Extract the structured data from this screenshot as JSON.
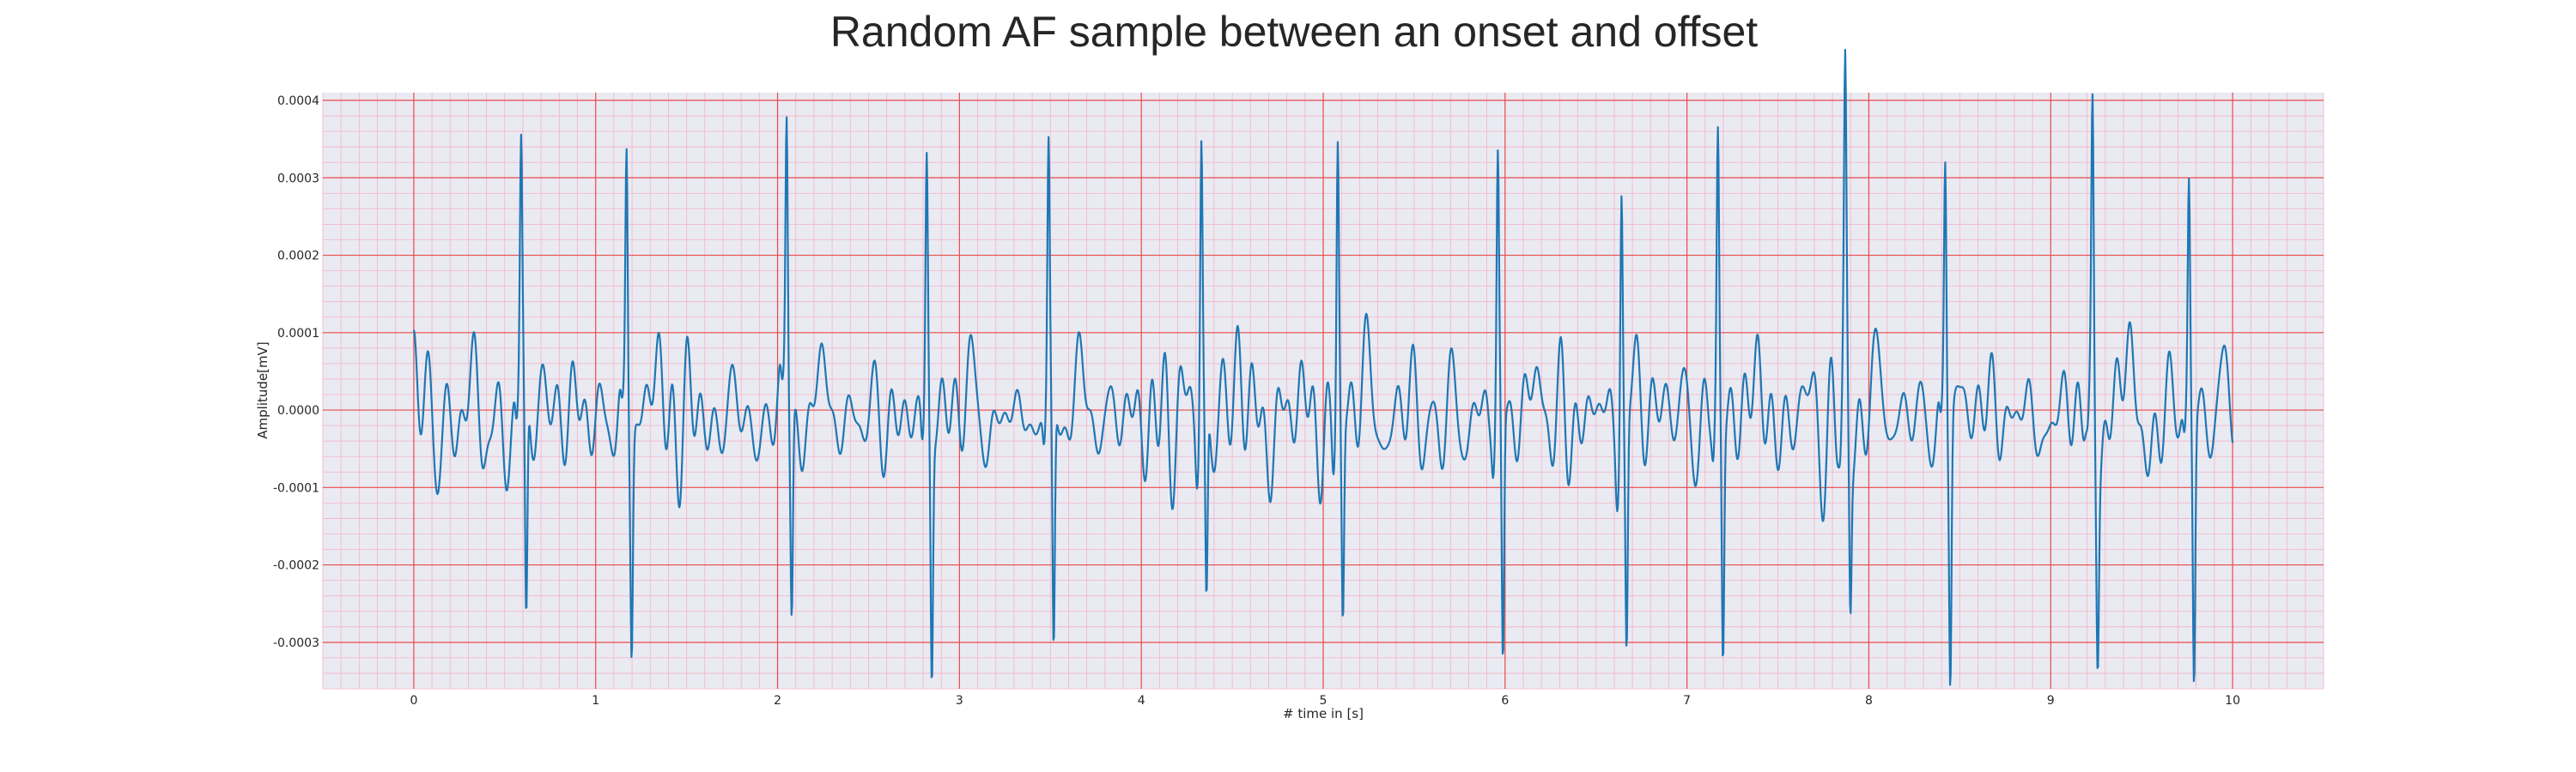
{
  "chart_data": {
    "type": "line",
    "title": "Random AF sample between an onset and offset",
    "xlabel": "# time in [s]",
    "ylabel": "Amplitude[mV]",
    "xlim": [
      -0.5,
      10.5
    ],
    "ylim": [
      -0.00036,
      0.00041
    ],
    "x_ticks": [
      0,
      1,
      2,
      3,
      4,
      5,
      6,
      7,
      8,
      9,
      10
    ],
    "x_tick_labels": [
      "0",
      "1",
      "2",
      "3",
      "4",
      "5",
      "6",
      "7",
      "8",
      "9",
      "10"
    ],
    "y_ticks": [
      -0.0003,
      -0.0002,
      -0.0001,
      0.0,
      0.0001,
      0.0002,
      0.0003,
      0.0004
    ],
    "y_tick_labels": [
      "-0.0003",
      "-0.0002",
      "-0.0001",
      "0.0000",
      "0.0001",
      "0.0002",
      "0.0003",
      "0.0004"
    ],
    "grid": true,
    "grid_major_color": "#e84a4a",
    "grid_minor_color": "#f4b3c4",
    "background_color": "#eaeaf2",
    "line_color": "#1f77b4",
    "series": [
      {
        "beats": [
          {
            "t": 0.59,
            "peak": 0.000315,
            "trough": -0.00031
          },
          {
            "t": 1.17,
            "peak": 0.000355,
            "trough": -0.00027
          },
          {
            "t": 2.05,
            "peak": 0.000375,
            "trough": -0.000255
          },
          {
            "t": 2.82,
            "peak": 0.000335,
            "trough": -0.000325
          },
          {
            "t": 3.49,
            "peak": 0.000338,
            "trough": -0.000325
          },
          {
            "t": 4.33,
            "peak": 0.00037,
            "trough": -0.00027
          },
          {
            "t": 5.08,
            "peak": 0.000362,
            "trough": -0.000265
          },
          {
            "t": 5.96,
            "peak": 0.000325,
            "trough": -0.00033
          },
          {
            "t": 6.64,
            "peak": 0.00034,
            "trough": -0.000305
          },
          {
            "t": 7.17,
            "peak": 0.000338,
            "trough": -0.000305
          },
          {
            "t": 7.87,
            "peak": 0.000368,
            "trough": -0.000218
          },
          {
            "t": 8.42,
            "peak": 0.000335,
            "trough": -0.000328
          },
          {
            "t": 9.23,
            "peak": 0.000378,
            "trough": -0.00023
          },
          {
            "t": 9.76,
            "peak": 0.0003,
            "trough": -0.00033
          }
        ]
      }
    ]
  }
}
